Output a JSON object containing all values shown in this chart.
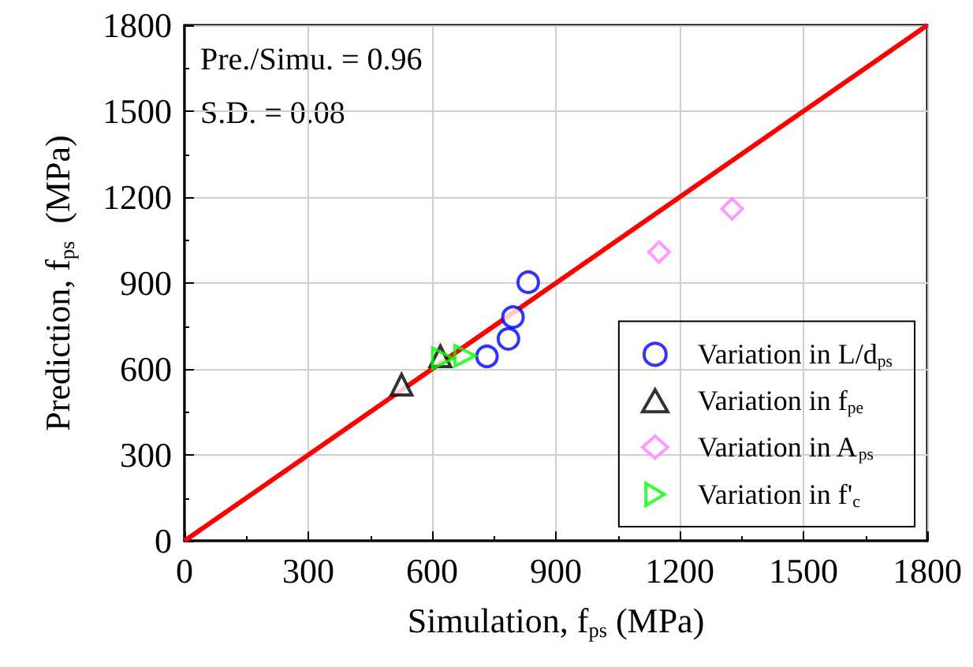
{
  "chart_data": {
    "type": "scatter",
    "xlabel": "Simulation, f$_{ps}$ (MPa)",
    "ylabel": "Prediction, f$_{ps}$  (MPa)",
    "xlim": [
      0,
      1800
    ],
    "xticks": [
      0,
      300,
      600,
      900,
      1200,
      1500,
      1800
    ],
    "ylim": [
      0,
      1800
    ],
    "yticks": [
      0,
      300,
      600,
      900,
      1200,
      1500,
      1800
    ],
    "grid": true,
    "legend": "bottom right",
    "annotations": [
      "Pre./Simu. = 0.96",
      "S.D. = 0.08"
    ],
    "series": [
      {
        "type": "line",
        "color": "#ff0000",
        "marker": "none",
        "line_style": "solid",
        "x": [
          0,
          1800
        ],
        "values": [
          0,
          1800
        ]
      },
      {
        "name": "Variation in L/d$_{ps}$",
        "color": "#0000ff",
        "marker": "circle",
        "x": [
          733,
          785,
          796,
          833
        ],
        "values": [
          644,
          705,
          781,
          903
        ]
      },
      {
        "name": "Variation in f$_{pe}$",
        "color": "#000000",
        "marker": "triangle",
        "x": [
          526,
          620
        ],
        "values": [
          545,
          644
        ]
      },
      {
        "name": "Variation in A$_{ps}$",
        "color": "#ff80ff",
        "marker": "diamond",
        "x": [
          1150,
          1327
        ],
        "values": [
          1008,
          1159
        ]
      },
      {
        "name": "Variation in f'$_{c}$",
        "color": "#00ff00",
        "marker": "triangle-right",
        "x": [
          626,
          680
        ],
        "values": [
          637,
          646
        ]
      }
    ]
  }
}
